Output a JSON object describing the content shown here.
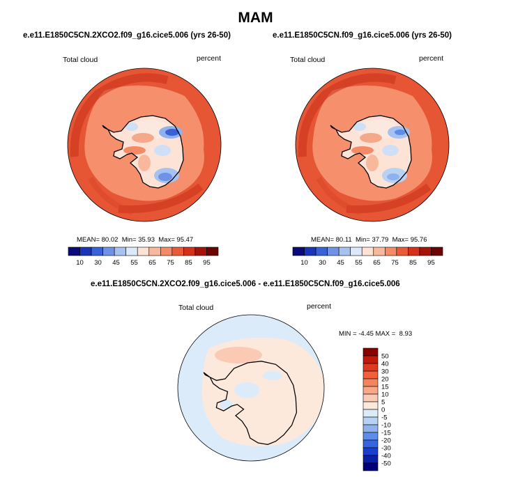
{
  "page": {
    "title": "MAM"
  },
  "chart_data": [
    {
      "type": "heatmap",
      "projection": "south-polar-stereographic",
      "title": "e.e11.E1850C5CN.2XCO2.f09_g16.cice5.006 (yrs 26-50)",
      "left_label": "Total cloud",
      "right_label": "percent",
      "stats": {
        "mean_label": "MEAN=",
        "mean": "80.02",
        "min_label": "Min=",
        "min": "35.93",
        "max_label": "Max=",
        "max": "95.47"
      },
      "colorbar": {
        "orientation": "horizontal",
        "colors": [
          "#0a0a7a",
          "#1a35b8",
          "#3a62d8",
          "#6f92e6",
          "#a6c2f0",
          "#dde9f8",
          "#fde3d6",
          "#f8b89c",
          "#f48a66",
          "#ea5a36",
          "#d4301a",
          "#a61306",
          "#6c0202"
        ],
        "tick_labels": [
          "10",
          "30",
          "45",
          "55",
          "65",
          "75",
          "85",
          "95"
        ]
      }
    },
    {
      "type": "heatmap",
      "projection": "south-polar-stereographic",
      "title": "e.e11.E1850C5CN.f09_g16.cice5.006 (yrs 26-50)",
      "left_label": "Total cloud",
      "right_label": "percent",
      "stats": {
        "mean_label": "MEAN=",
        "mean": "80.11",
        "min_label": "Min=",
        "min": "37.79",
        "max_label": "Max=",
        "max": "95.76"
      },
      "colorbar": {
        "orientation": "horizontal",
        "colors": [
          "#0a0a7a",
          "#1a35b8",
          "#3a62d8",
          "#6f92e6",
          "#a6c2f0",
          "#dde9f8",
          "#fde3d6",
          "#f8b89c",
          "#f48a66",
          "#ea5a36",
          "#d4301a",
          "#a61306",
          "#6c0202"
        ],
        "tick_labels": [
          "10",
          "30",
          "45",
          "55",
          "65",
          "75",
          "85",
          "95"
        ]
      }
    },
    {
      "type": "heatmap",
      "projection": "south-polar-stereographic",
      "title": "e.e11.E1850C5CN.2XCO2.f09_g16.cice5.006 - e.e11.E1850C5CN.f09_g16.cice5.006",
      "left_label": "Total cloud",
      "right_label": "percent",
      "stats": {
        "min_label": "MIN =",
        "min": "-4.45",
        "max_label": "MAX =",
        "max": "8.93"
      },
      "colorbar": {
        "orientation": "vertical",
        "colors": [
          "#8c0000",
          "#c01a0a",
          "#e03a1c",
          "#f0603a",
          "#f5835c",
          "#f8a888",
          "#fbcab4",
          "#fde9dc",
          "#dcebfa",
          "#b8d2f4",
          "#8fb2ee",
          "#5e8cea",
          "#3565e0",
          "#1a3fd0",
          "#0a20a8",
          "#000078"
        ],
        "tick_labels": [
          "50",
          "40",
          "30",
          "20",
          "15",
          "10",
          "5",
          "0",
          "-5",
          "-10",
          "-15",
          "-20",
          "-30",
          "-40",
          "-50"
        ]
      }
    }
  ]
}
